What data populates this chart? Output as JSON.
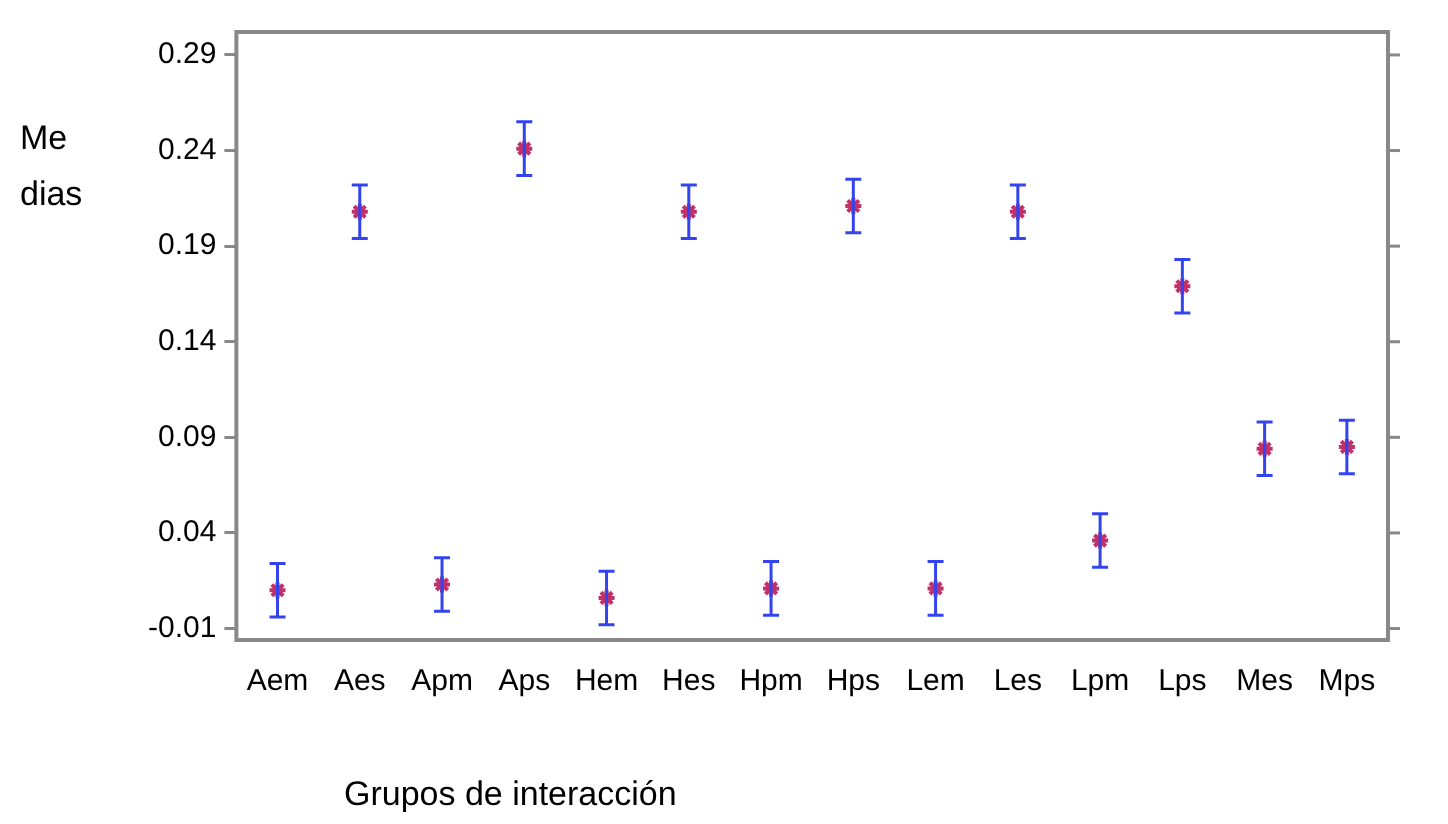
{
  "chart_data": {
    "type": "scatter",
    "ylabel": "Me dias",
    "xlabel": "Grupos de interacción",
    "categories": [
      "Aem",
      "Aes",
      "Apm",
      "Aps",
      "Hem",
      "Hes",
      "Hpm",
      "Hps",
      "Lem",
      "Les",
      "Lpm",
      "Lps",
      "Mes",
      "Mps"
    ],
    "values": [
      0.01,
      0.208,
      0.013,
      0.241,
      0.006,
      0.208,
      0.011,
      0.211,
      0.011,
      0.208,
      0.036,
      0.169,
      0.084,
      0.085
    ],
    "errors": [
      0.014,
      0.014,
      0.014,
      0.014,
      0.014,
      0.014,
      0.014,
      0.014,
      0.014,
      0.014,
      0.014,
      0.014,
      0.014,
      0.014
    ],
    "color": "#c0306a",
    "marker": "cross",
    "ylim": [
      -0.016,
      0.302
    ],
    "yticks": [
      -0.01,
      0.04,
      0.09,
      0.14,
      0.19,
      0.24,
      0.29
    ],
    "grid": false,
    "legend": false
  }
}
